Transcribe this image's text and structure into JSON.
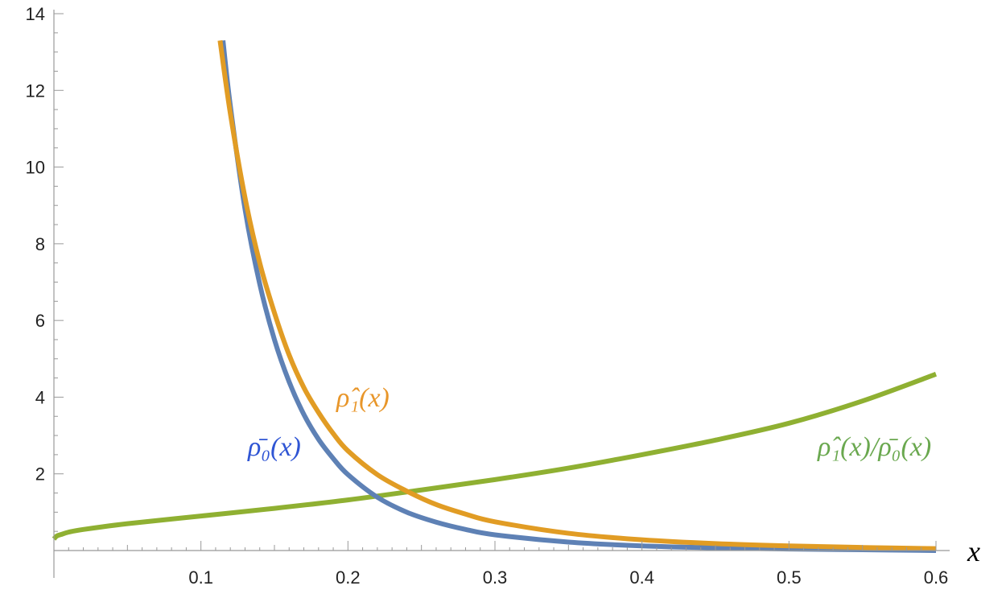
{
  "chart_data": {
    "type": "line",
    "xlabel": "x",
    "ylabel": "",
    "xlim": [
      0,
      0.6
    ],
    "ylim": [
      0,
      14
    ],
    "x_ticks": [
      "0.1",
      "0.2",
      "0.3",
      "0.4",
      "0.5",
      "0.6"
    ],
    "y_ticks": [
      "2",
      "4",
      "6",
      "8",
      "10",
      "12",
      "14"
    ],
    "grid": false,
    "series": [
      {
        "name": "ρ̄₀(x)",
        "color": "#5e81b5",
        "label_color": "#2f55d4",
        "x": [
          0.115,
          0.12,
          0.13,
          0.14,
          0.15,
          0.16,
          0.17,
          0.18,
          0.19,
          0.2,
          0.22,
          0.24,
          0.26,
          0.28,
          0.3,
          0.35,
          0.4,
          0.45,
          0.5,
          0.55,
          0.6
        ],
        "y": [
          13.3,
          11.6,
          8.9,
          6.95,
          5.5,
          4.4,
          3.55,
          2.9,
          2.4,
          1.98,
          1.39,
          1.0,
          0.74,
          0.55,
          0.41,
          0.22,
          0.12,
          0.07,
          0.04,
          0.02,
          0.0
        ]
      },
      {
        "name": "ρ̂₁(x)",
        "color": "#e19c24",
        "label_color": "#e8962a",
        "x": [
          0.113,
          0.12,
          0.13,
          0.14,
          0.15,
          0.16,
          0.17,
          0.18,
          0.19,
          0.2,
          0.22,
          0.24,
          0.26,
          0.28,
          0.3,
          0.35,
          0.4,
          0.45,
          0.5,
          0.55,
          0.6
        ],
        "y": [
          13.3,
          11.4,
          9.2,
          7.5,
          6.2,
          5.1,
          4.25,
          3.6,
          3.05,
          2.6,
          1.98,
          1.55,
          1.2,
          0.95,
          0.75,
          0.45,
          0.28,
          0.18,
          0.12,
          0.08,
          0.05
        ]
      },
      {
        "name": "ρ̂₁(x)/ρ̄₀(x)",
        "color": "#8fb032",
        "label_color": "#6aa84f",
        "x": [
          0.0,
          0.002,
          0.005,
          0.01,
          0.02,
          0.05,
          0.1,
          0.15,
          0.2,
          0.25,
          0.3,
          0.35,
          0.4,
          0.45,
          0.5,
          0.55,
          0.6
        ],
        "y": [
          0.3,
          0.38,
          0.42,
          0.48,
          0.55,
          0.7,
          0.9,
          1.1,
          1.32,
          1.58,
          1.85,
          2.15,
          2.5,
          2.88,
          3.32,
          3.9,
          4.6
        ]
      }
    ]
  }
}
